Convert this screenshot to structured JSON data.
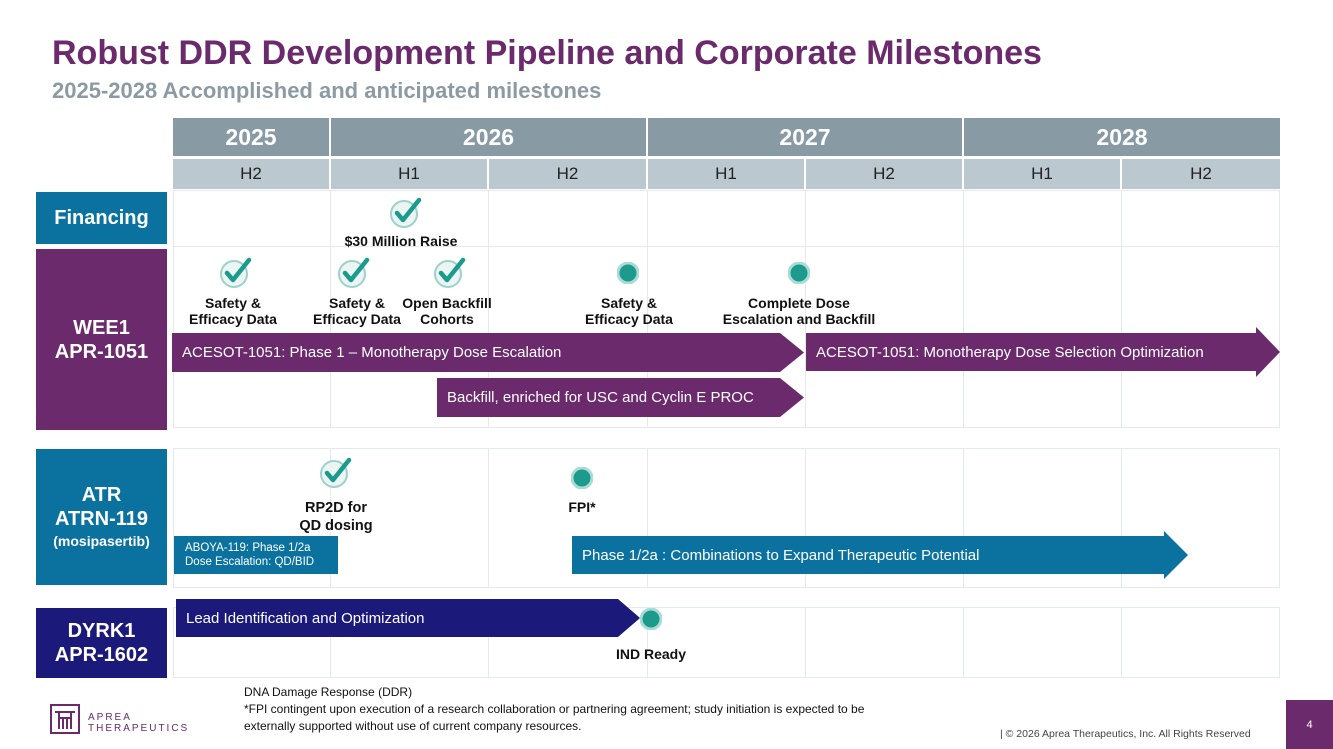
{
  "title": "Robust DDR Development Pipeline and Corporate Milestones",
  "subtitle": "2025-2028 Accomplished and anticipated milestones",
  "timeline": {
    "years": [
      "2025",
      "2026",
      "2027",
      "2028"
    ],
    "halves": [
      "H2",
      "H1",
      "H2",
      "H1",
      "H2",
      "H1",
      "H2"
    ]
  },
  "rows": {
    "financing": {
      "line1": "Financing"
    },
    "wee1": {
      "line1": "WEE1",
      "line2": "APR-1051"
    },
    "atr": {
      "line1": "ATR",
      "line2": "ATRN-119",
      "line3": "(mosipasertib)"
    },
    "dyrk1": {
      "line1": "DYRK1",
      "line2": "APR-1602"
    }
  },
  "milestones": {
    "raise": "$30 Million Raise",
    "wee1_safety1": [
      "Safety &",
      "Efficacy Data"
    ],
    "wee1_safety2": [
      "Safety &",
      "Efficacy Data"
    ],
    "wee1_backfill": [
      "Open Backfill",
      "Cohorts"
    ],
    "wee1_safety3": [
      "Safety &",
      "Efficacy Data"
    ],
    "wee1_complete": [
      "Complete Dose",
      "Escalation and Backfill"
    ],
    "atr_rp2d": [
      "RP2D for",
      "QD dosing"
    ],
    "atr_fpi": "FPI*",
    "dyrk_ind": "IND Ready"
  },
  "arrows": {
    "wee1_phase1": "ACESOT-1051: Phase 1 – Monotherapy Dose Escalation",
    "wee1_selection": "ACESOT-1051: Monotherapy Dose Selection Optimization",
    "wee1_backfill": "Backfill, enriched for USC and Cyclin E PROC",
    "atr_escalation": [
      "ABOYA-119: Phase 1/2a",
      "Dose Escalation: QD/BID"
    ],
    "atr_combo": "Phase 1/2a : Combinations to Expand Therapeutic Potential",
    "dyrk_lead": "Lead Identification and Optimization"
  },
  "footnote": [
    "DNA Damage Response (DDR)",
    "*FPI contingent upon execution of a research collaboration or partnering agreement; study initiation is expected to be",
    "externally supported without use of current company resources."
  ],
  "logo": {
    "line1": "APREA",
    "line2": "THERAPEUTICS"
  },
  "copyright": "|  © 2026 Aprea Therapeutics, Inc. All Rights Reserved",
  "page_number": "4",
  "colors": {
    "purple": "#6a2a6b",
    "blue": "#0b72a0",
    "navy": "#1b1a7a",
    "teal": "#1c9a8c",
    "year_header": "#889aa4",
    "half_header": "#bcc8cf"
  }
}
